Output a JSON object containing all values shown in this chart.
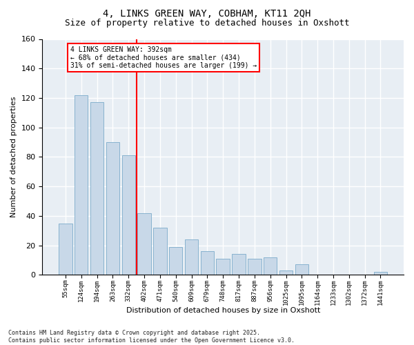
{
  "title": "4, LINKS GREEN WAY, COBHAM, KT11 2QH",
  "subtitle": "Size of property relative to detached houses in Oxshott",
  "xlabel": "Distribution of detached houses by size in Oxshott",
  "ylabel": "Number of detached properties",
  "bar_color": "#c8d8e8",
  "bar_edge_color": "#7aaaca",
  "vline_color": "red",
  "vline_index": 5,
  "annotation_line1": "4 LINKS GREEN WAY: 392sqm",
  "annotation_line2": "← 68% of detached houses are smaller (434)",
  "annotation_line3": "31% of semi-detached houses are larger (199) →",
  "categories": [
    "55sqm",
    "124sqm",
    "194sqm",
    "263sqm",
    "332sqm",
    "402sqm",
    "471sqm",
    "540sqm",
    "609sqm",
    "679sqm",
    "748sqm",
    "817sqm",
    "887sqm",
    "956sqm",
    "1025sqm",
    "1095sqm",
    "1164sqm",
    "1233sqm",
    "1302sqm",
    "1372sqm",
    "1441sqm"
  ],
  "values": [
    35,
    122,
    117,
    90,
    81,
    42,
    32,
    19,
    24,
    16,
    11,
    14,
    11,
    12,
    3,
    7,
    0,
    0,
    0,
    0,
    2
  ],
  "ylim": [
    0,
    160
  ],
  "yticks": [
    0,
    20,
    40,
    60,
    80,
    100,
    120,
    140,
    160
  ],
  "grid_color": "#ffffff",
  "background_color": "#e8eef4",
  "footer_line1": "Contains HM Land Registry data © Crown copyright and database right 2025.",
  "footer_line2": "Contains public sector information licensed under the Open Government Licence v3.0."
}
